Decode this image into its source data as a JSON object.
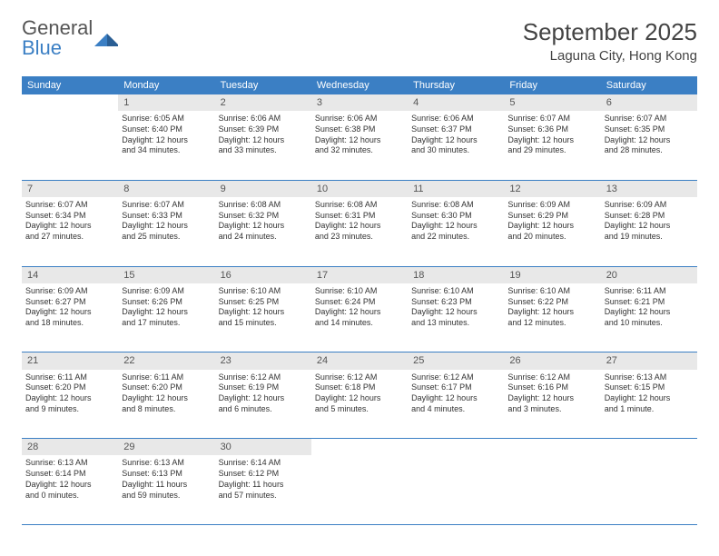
{
  "brand": {
    "line1": "General",
    "line2": "Blue"
  },
  "title": "September 2025",
  "location": "Laguna City, Hong Kong",
  "colors": {
    "header_bg": "#3b7fc4",
    "header_text": "#ffffff",
    "daynum_bg": "#e8e8e8",
    "daynum_text": "#555555",
    "cell_text": "#333333",
    "divider": "#3b7fc4",
    "brand_blue": "#3b7fc4",
    "brand_gray": "#555555",
    "page_bg": "#ffffff"
  },
  "typography": {
    "title_fontsize": 26,
    "location_fontsize": 15,
    "header_fontsize": 11,
    "daynum_fontsize": 11,
    "cell_fontsize": 9
  },
  "day_headers": [
    "Sunday",
    "Monday",
    "Tuesday",
    "Wednesday",
    "Thursday",
    "Friday",
    "Saturday"
  ],
  "weeks": [
    {
      "nums": [
        "",
        "1",
        "2",
        "3",
        "4",
        "5",
        "6"
      ],
      "cells": [
        null,
        {
          "sunrise": "Sunrise: 6:05 AM",
          "sunset": "Sunset: 6:40 PM",
          "day1": "Daylight: 12 hours",
          "day2": "and 34 minutes."
        },
        {
          "sunrise": "Sunrise: 6:06 AM",
          "sunset": "Sunset: 6:39 PM",
          "day1": "Daylight: 12 hours",
          "day2": "and 33 minutes."
        },
        {
          "sunrise": "Sunrise: 6:06 AM",
          "sunset": "Sunset: 6:38 PM",
          "day1": "Daylight: 12 hours",
          "day2": "and 32 minutes."
        },
        {
          "sunrise": "Sunrise: 6:06 AM",
          "sunset": "Sunset: 6:37 PM",
          "day1": "Daylight: 12 hours",
          "day2": "and 30 minutes."
        },
        {
          "sunrise": "Sunrise: 6:07 AM",
          "sunset": "Sunset: 6:36 PM",
          "day1": "Daylight: 12 hours",
          "day2": "and 29 minutes."
        },
        {
          "sunrise": "Sunrise: 6:07 AM",
          "sunset": "Sunset: 6:35 PM",
          "day1": "Daylight: 12 hours",
          "day2": "and 28 minutes."
        }
      ]
    },
    {
      "nums": [
        "7",
        "8",
        "9",
        "10",
        "11",
        "12",
        "13"
      ],
      "cells": [
        {
          "sunrise": "Sunrise: 6:07 AM",
          "sunset": "Sunset: 6:34 PM",
          "day1": "Daylight: 12 hours",
          "day2": "and 27 minutes."
        },
        {
          "sunrise": "Sunrise: 6:07 AM",
          "sunset": "Sunset: 6:33 PM",
          "day1": "Daylight: 12 hours",
          "day2": "and 25 minutes."
        },
        {
          "sunrise": "Sunrise: 6:08 AM",
          "sunset": "Sunset: 6:32 PM",
          "day1": "Daylight: 12 hours",
          "day2": "and 24 minutes."
        },
        {
          "sunrise": "Sunrise: 6:08 AM",
          "sunset": "Sunset: 6:31 PM",
          "day1": "Daylight: 12 hours",
          "day2": "and 23 minutes."
        },
        {
          "sunrise": "Sunrise: 6:08 AM",
          "sunset": "Sunset: 6:30 PM",
          "day1": "Daylight: 12 hours",
          "day2": "and 22 minutes."
        },
        {
          "sunrise": "Sunrise: 6:09 AM",
          "sunset": "Sunset: 6:29 PM",
          "day1": "Daylight: 12 hours",
          "day2": "and 20 minutes."
        },
        {
          "sunrise": "Sunrise: 6:09 AM",
          "sunset": "Sunset: 6:28 PM",
          "day1": "Daylight: 12 hours",
          "day2": "and 19 minutes."
        }
      ]
    },
    {
      "nums": [
        "14",
        "15",
        "16",
        "17",
        "18",
        "19",
        "20"
      ],
      "cells": [
        {
          "sunrise": "Sunrise: 6:09 AM",
          "sunset": "Sunset: 6:27 PM",
          "day1": "Daylight: 12 hours",
          "day2": "and 18 minutes."
        },
        {
          "sunrise": "Sunrise: 6:09 AM",
          "sunset": "Sunset: 6:26 PM",
          "day1": "Daylight: 12 hours",
          "day2": "and 17 minutes."
        },
        {
          "sunrise": "Sunrise: 6:10 AM",
          "sunset": "Sunset: 6:25 PM",
          "day1": "Daylight: 12 hours",
          "day2": "and 15 minutes."
        },
        {
          "sunrise": "Sunrise: 6:10 AM",
          "sunset": "Sunset: 6:24 PM",
          "day1": "Daylight: 12 hours",
          "day2": "and 14 minutes."
        },
        {
          "sunrise": "Sunrise: 6:10 AM",
          "sunset": "Sunset: 6:23 PM",
          "day1": "Daylight: 12 hours",
          "day2": "and 13 minutes."
        },
        {
          "sunrise": "Sunrise: 6:10 AM",
          "sunset": "Sunset: 6:22 PM",
          "day1": "Daylight: 12 hours",
          "day2": "and 12 minutes."
        },
        {
          "sunrise": "Sunrise: 6:11 AM",
          "sunset": "Sunset: 6:21 PM",
          "day1": "Daylight: 12 hours",
          "day2": "and 10 minutes."
        }
      ]
    },
    {
      "nums": [
        "21",
        "22",
        "23",
        "24",
        "25",
        "26",
        "27"
      ],
      "cells": [
        {
          "sunrise": "Sunrise: 6:11 AM",
          "sunset": "Sunset: 6:20 PM",
          "day1": "Daylight: 12 hours",
          "day2": "and 9 minutes."
        },
        {
          "sunrise": "Sunrise: 6:11 AM",
          "sunset": "Sunset: 6:20 PM",
          "day1": "Daylight: 12 hours",
          "day2": "and 8 minutes."
        },
        {
          "sunrise": "Sunrise: 6:12 AM",
          "sunset": "Sunset: 6:19 PM",
          "day1": "Daylight: 12 hours",
          "day2": "and 6 minutes."
        },
        {
          "sunrise": "Sunrise: 6:12 AM",
          "sunset": "Sunset: 6:18 PM",
          "day1": "Daylight: 12 hours",
          "day2": "and 5 minutes."
        },
        {
          "sunrise": "Sunrise: 6:12 AM",
          "sunset": "Sunset: 6:17 PM",
          "day1": "Daylight: 12 hours",
          "day2": "and 4 minutes."
        },
        {
          "sunrise": "Sunrise: 6:12 AM",
          "sunset": "Sunset: 6:16 PM",
          "day1": "Daylight: 12 hours",
          "day2": "and 3 minutes."
        },
        {
          "sunrise": "Sunrise: 6:13 AM",
          "sunset": "Sunset: 6:15 PM",
          "day1": "Daylight: 12 hours",
          "day2": "and 1 minute."
        }
      ]
    },
    {
      "nums": [
        "28",
        "29",
        "30",
        "",
        "",
        "",
        ""
      ],
      "cells": [
        {
          "sunrise": "Sunrise: 6:13 AM",
          "sunset": "Sunset: 6:14 PM",
          "day1": "Daylight: 12 hours",
          "day2": "and 0 minutes."
        },
        {
          "sunrise": "Sunrise: 6:13 AM",
          "sunset": "Sunset: 6:13 PM",
          "day1": "Daylight: 11 hours",
          "day2": "and 59 minutes."
        },
        {
          "sunrise": "Sunrise: 6:14 AM",
          "sunset": "Sunset: 6:12 PM",
          "day1": "Daylight: 11 hours",
          "day2": "and 57 minutes."
        },
        null,
        null,
        null,
        null
      ]
    }
  ]
}
